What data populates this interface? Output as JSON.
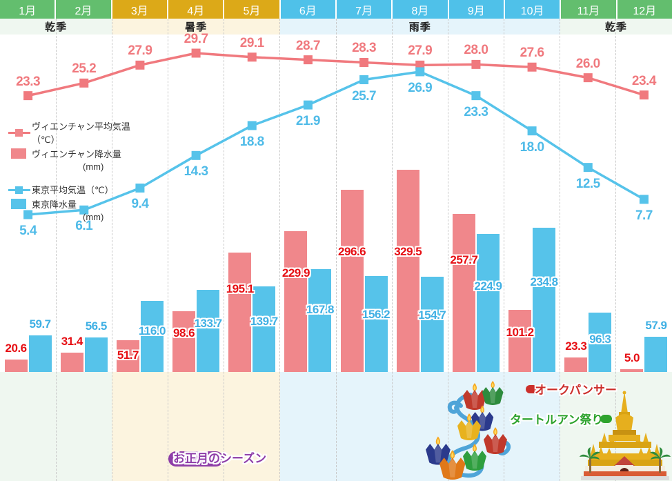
{
  "months": [
    {
      "label": "1月",
      "group": "green"
    },
    {
      "label": "2月",
      "group": "green"
    },
    {
      "label": "3月",
      "group": "gold"
    },
    {
      "label": "4月",
      "group": "gold"
    },
    {
      "label": "5月",
      "group": "gold"
    },
    {
      "label": "6月",
      "group": "blue"
    },
    {
      "label": "7月",
      "group": "blue"
    },
    {
      "label": "8月",
      "group": "blue"
    },
    {
      "label": "9月",
      "group": "blue"
    },
    {
      "label": "10月",
      "group": "blue"
    },
    {
      "label": "11月",
      "group": "green"
    },
    {
      "label": "12月",
      "group": "green"
    }
  ],
  "header_palette": {
    "green": "#63BE6E",
    "gold": "#DCA918",
    "blue": "#4FC1E9"
  },
  "seasons": [
    {
      "label": "乾季",
      "start": 0,
      "span": 2,
      "bg": "#EFF7F0"
    },
    {
      "label": "暑季",
      "start": 2,
      "span": 3,
      "bg": "#FCF4DF"
    },
    {
      "label": "雨季",
      "start": 5,
      "span": 5,
      "bg": "#E5F4FB"
    },
    {
      "label": "乾季",
      "start": 10,
      "span": 2,
      "bg": "#EFF7F0"
    }
  ],
  "legend": {
    "items": [
      {
        "label": "ヴィエンチャン平均気温（℃）",
        "type": "line",
        "color": "#F0797E"
      },
      {
        "label": "ヴィエンチャン降水量",
        "unit": "(mm)",
        "type": "bar",
        "color": "#F0878B"
      },
      {
        "label": "東京平均気温（℃）",
        "type": "line",
        "color": "#56C3EA"
      },
      {
        "label": "東京降水量",
        "unit": "(mm)",
        "type": "bar",
        "color": "#56C3EA"
      }
    ]
  },
  "chart_data": {
    "type": "bar+line",
    "categories": [
      "1月",
      "2月",
      "3月",
      "4月",
      "5月",
      "6月",
      "7月",
      "8月",
      "9月",
      "10月",
      "11月",
      "12月"
    ],
    "series": [
      {
        "name": "ヴィエンチャン平均気温（℃）",
        "type": "line",
        "key": "vientiane_temp",
        "color": "#F0797E",
        "values": [
          23.3,
          25.2,
          27.9,
          29.7,
          29.1,
          28.7,
          28.3,
          27.9,
          28.0,
          27.6,
          26.0,
          23.4
        ]
      },
      {
        "name": "東京平均気温（℃）",
        "type": "line",
        "key": "tokyo_temp",
        "color": "#56C3EA",
        "values": [
          5.4,
          6.1,
          9.4,
          14.3,
          18.8,
          21.9,
          25.7,
          26.9,
          23.3,
          18.0,
          12.5,
          7.7
        ]
      },
      {
        "name": "ヴィエンチャン降水量(mm)",
        "type": "bar",
        "key": "vientiane_precip",
        "color": "#F0878B",
        "values": [
          20.6,
          31.4,
          51.7,
          98.6,
          195.1,
          229.9,
          296.6,
          329.5,
          257.7,
          101.2,
          23.3,
          5.0
        ]
      },
      {
        "name": "東京降水量(mm)",
        "type": "bar",
        "key": "tokyo_precip",
        "color": "#56C3EA",
        "values": [
          59.7,
          56.5,
          116.0,
          133.7,
          139.7,
          167.8,
          156.2,
          154.7,
          224.9,
          234.8,
          96.3,
          57.9
        ]
      }
    ],
    "value_label_colors": {
      "vientiane_temp": "#F0797E",
      "tokyo_temp": "#4FBBE8",
      "vientiane_precip": "#E60E13",
      "tokyo_precip": "#3FB0E4"
    },
    "temp_range_shown": [
      5.4,
      29.7
    ],
    "precip_max_shown": 329.5,
    "grid": "vertical-dashed",
    "legend_position": "left"
  },
  "annotations": {
    "new_year_season": {
      "label": "お正月のシーズン",
      "color": "#8E3DA8"
    },
    "boun_ok_phansa": {
      "label": "オークパンサー",
      "color": "#CC2F2B"
    },
    "that_luang_festival": {
      "label": "タートルアン祭り",
      "color": "#2EA32E"
    }
  }
}
